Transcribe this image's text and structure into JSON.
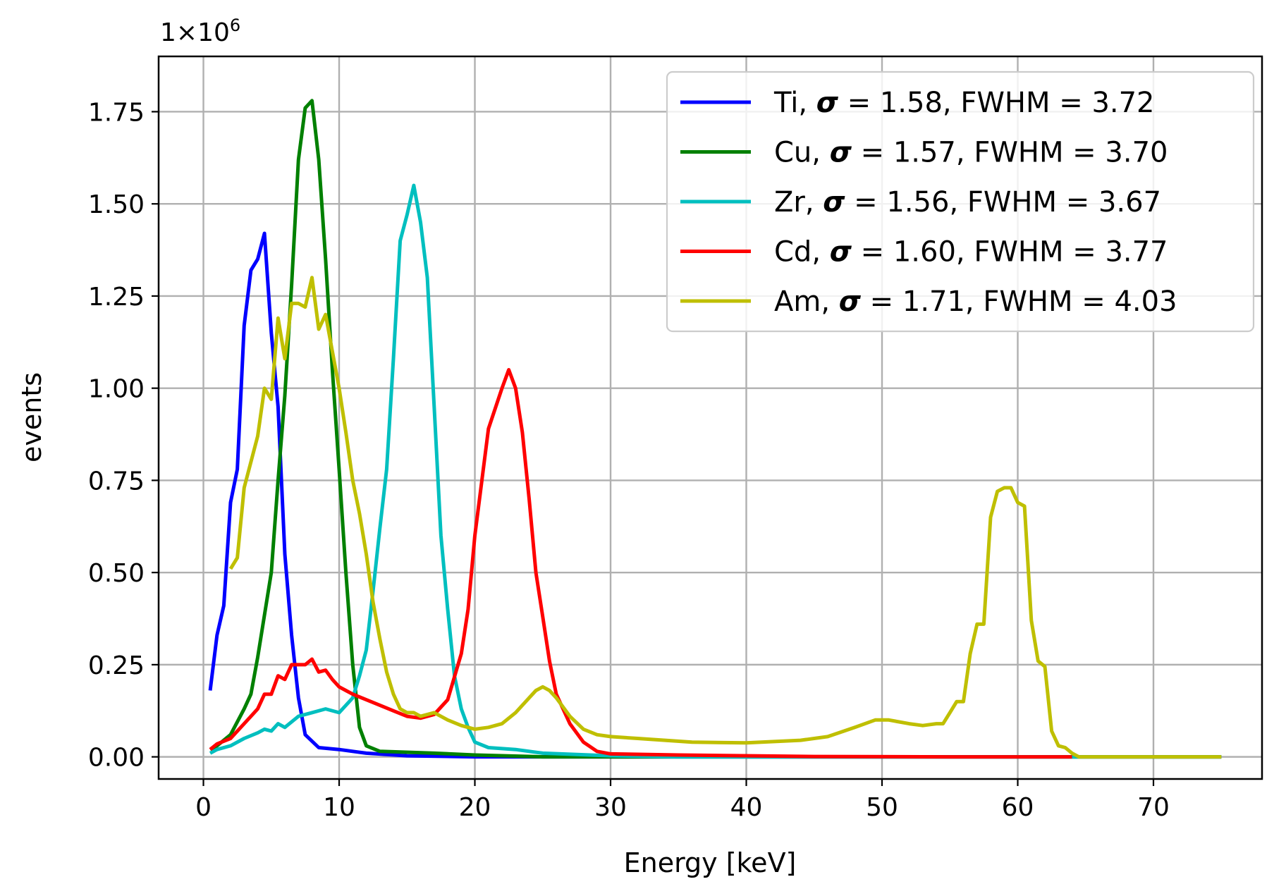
{
  "chart_data": {
    "type": "line",
    "title": "",
    "xlabel": "Energy [keV]",
    "ylabel": "events",
    "y_offset_text": "1×10",
    "y_offset_exponent": "6",
    "xlim": [
      -3.3,
      78
    ],
    "ylim": [
      -0.06,
      1.9
    ],
    "x_ticks": [
      0,
      10,
      20,
      30,
      40,
      50,
      60,
      70
    ],
    "x_tick_labels": [
      "0",
      "10",
      "20",
      "30",
      "40",
      "50",
      "60",
      "70"
    ],
    "y_ticks": [
      0,
      0.25,
      0.5,
      0.75,
      1.0,
      1.25,
      1.5,
      1.75
    ],
    "y_tick_labels": [
      "0.00",
      "0.25",
      "0.50",
      "0.75",
      "1.00",
      "1.25",
      "1.50",
      "1.75"
    ],
    "grid": true,
    "legend_position": "top-right",
    "series": [
      {
        "name": "Ti",
        "sigma": "1.58",
        "fwhm": "3.72",
        "color": "#0000ff",
        "points": [
          [
            0.5,
            0.18
          ],
          [
            1,
            0.33
          ],
          [
            1.5,
            0.41
          ],
          [
            2,
            0.69
          ],
          [
            2.5,
            0.78
          ],
          [
            3,
            1.17
          ],
          [
            3.5,
            1.32
          ],
          [
            4,
            1.35
          ],
          [
            4.5,
            1.42
          ],
          [
            5,
            1.15
          ],
          [
            5.5,
            0.95
          ],
          [
            6,
            0.55
          ],
          [
            6.5,
            0.33
          ],
          [
            7,
            0.16
          ],
          [
            7.5,
            0.06
          ],
          [
            8.5,
            0.025
          ],
          [
            10,
            0.02
          ],
          [
            12,
            0.01
          ],
          [
            15,
            0.003
          ],
          [
            20,
            0.0
          ],
          [
            75,
            0.0
          ]
        ]
      },
      {
        "name": "Cu",
        "sigma": "1.57",
        "fwhm": "3.70",
        "color": "#008000",
        "points": [
          [
            0.5,
            0.02
          ],
          [
            1,
            0.03
          ],
          [
            2,
            0.06
          ],
          [
            3,
            0.13
          ],
          [
            3.5,
            0.17
          ],
          [
            4,
            0.27
          ],
          [
            5,
            0.5
          ],
          [
            5.5,
            0.75
          ],
          [
            6,
            0.98
          ],
          [
            6.5,
            1.28
          ],
          [
            7,
            1.62
          ],
          [
            7.5,
            1.76
          ],
          [
            8,
            1.78
          ],
          [
            8.5,
            1.62
          ],
          [
            9,
            1.35
          ],
          [
            9.5,
            1.05
          ],
          [
            10,
            0.78
          ],
          [
            10.5,
            0.5
          ],
          [
            11,
            0.25
          ],
          [
            11.5,
            0.08
          ],
          [
            12,
            0.03
          ],
          [
            13,
            0.015
          ],
          [
            17,
            0.01
          ],
          [
            20,
            0.005
          ],
          [
            25,
            0.0
          ],
          [
            75,
            0.0
          ]
        ]
      },
      {
        "name": "Zr",
        "sigma": "1.56",
        "fwhm": "3.67",
        "color": "#00bfbf",
        "points": [
          [
            0.5,
            0.01
          ],
          [
            1,
            0.02
          ],
          [
            2,
            0.03
          ],
          [
            3,
            0.05
          ],
          [
            4,
            0.065
          ],
          [
            4.5,
            0.075
          ],
          [
            5,
            0.07
          ],
          [
            5.5,
            0.09
          ],
          [
            6,
            0.08
          ],
          [
            7,
            0.11
          ],
          [
            8,
            0.12
          ],
          [
            9,
            0.13
          ],
          [
            10,
            0.12
          ],
          [
            11,
            0.16
          ],
          [
            11.5,
            0.22
          ],
          [
            12,
            0.29
          ],
          [
            12.5,
            0.45
          ],
          [
            13,
            0.62
          ],
          [
            13.5,
            0.78
          ],
          [
            14,
            1.08
          ],
          [
            14.5,
            1.4
          ],
          [
            15,
            1.47
          ],
          [
            15.5,
            1.55
          ],
          [
            16,
            1.45
          ],
          [
            16.5,
            1.3
          ],
          [
            17,
            0.95
          ],
          [
            17.5,
            0.6
          ],
          [
            18,
            0.4
          ],
          [
            18.5,
            0.22
          ],
          [
            19,
            0.13
          ],
          [
            19.5,
            0.08
          ],
          [
            20,
            0.04
          ],
          [
            21,
            0.025
          ],
          [
            23,
            0.02
          ],
          [
            25,
            0.01
          ],
          [
            30,
            0.003
          ],
          [
            35,
            0.0
          ],
          [
            75,
            0.0
          ]
        ]
      },
      {
        "name": "Cd",
        "sigma": "1.60",
        "fwhm": "3.77",
        "color": "#ff0000",
        "points": [
          [
            0.5,
            0.02
          ],
          [
            1,
            0.035
          ],
          [
            2,
            0.05
          ],
          [
            3,
            0.09
          ],
          [
            4,
            0.13
          ],
          [
            4.5,
            0.17
          ],
          [
            5,
            0.17
          ],
          [
            5.5,
            0.22
          ],
          [
            6,
            0.21
          ],
          [
            6.5,
            0.25
          ],
          [
            7,
            0.25
          ],
          [
            7.5,
            0.25
          ],
          [
            8,
            0.265
          ],
          [
            8.5,
            0.23
          ],
          [
            9,
            0.235
          ],
          [
            9.5,
            0.21
          ],
          [
            10,
            0.19
          ],
          [
            10.5,
            0.18
          ],
          [
            11,
            0.17
          ],
          [
            12,
            0.155
          ],
          [
            13,
            0.14
          ],
          [
            14,
            0.125
          ],
          [
            15,
            0.11
          ],
          [
            16,
            0.105
          ],
          [
            17,
            0.115
          ],
          [
            18,
            0.155
          ],
          [
            19,
            0.28
          ],
          [
            19.5,
            0.4
          ],
          [
            20,
            0.6
          ],
          [
            21,
            0.89
          ],
          [
            22,
            1.0
          ],
          [
            22.5,
            1.05
          ],
          [
            23,
            1.0
          ],
          [
            23.5,
            0.88
          ],
          [
            24,
            0.7
          ],
          [
            24.5,
            0.5
          ],
          [
            25,
            0.38
          ],
          [
            25.5,
            0.26
          ],
          [
            26,
            0.17
          ],
          [
            27,
            0.09
          ],
          [
            28,
            0.04
          ],
          [
            29,
            0.015
          ],
          [
            30,
            0.008
          ],
          [
            35,
            0.005
          ],
          [
            45,
            0.001
          ],
          [
            55,
            0.0
          ],
          [
            64,
            0.0
          ]
        ]
      },
      {
        "name": "Am",
        "sigma": "1.71",
        "fwhm": "4.03",
        "color": "#bfbf00",
        "points": [
          [
            2,
            0.51
          ],
          [
            2.5,
            0.54
          ],
          [
            3,
            0.73
          ],
          [
            3.5,
            0.8
          ],
          [
            4,
            0.87
          ],
          [
            4.5,
            1.0
          ],
          [
            5,
            0.97
          ],
          [
            5.5,
            1.19
          ],
          [
            6,
            1.08
          ],
          [
            6.5,
            1.23
          ],
          [
            7,
            1.23
          ],
          [
            7.5,
            1.22
          ],
          [
            8,
            1.3
          ],
          [
            8.5,
            1.16
          ],
          [
            9,
            1.2
          ],
          [
            9.5,
            1.1
          ],
          [
            10,
            1.0
          ],
          [
            10.5,
            0.88
          ],
          [
            11,
            0.75
          ],
          [
            11.5,
            0.66
          ],
          [
            12,
            0.55
          ],
          [
            12.5,
            0.42
          ],
          [
            13,
            0.32
          ],
          [
            13.5,
            0.23
          ],
          [
            14,
            0.17
          ],
          [
            14.5,
            0.13
          ],
          [
            15,
            0.12
          ],
          [
            15.5,
            0.12
          ],
          [
            16,
            0.11
          ],
          [
            17,
            0.12
          ],
          [
            18,
            0.1
          ],
          [
            19,
            0.085
          ],
          [
            20,
            0.075
          ],
          [
            21,
            0.08
          ],
          [
            22,
            0.09
          ],
          [
            23,
            0.12
          ],
          [
            24,
            0.16
          ],
          [
            24.5,
            0.18
          ],
          [
            25,
            0.19
          ],
          [
            25.5,
            0.18
          ],
          [
            26,
            0.16
          ],
          [
            27,
            0.11
          ],
          [
            28,
            0.075
          ],
          [
            29,
            0.06
          ],
          [
            30,
            0.055
          ],
          [
            32,
            0.05
          ],
          [
            34,
            0.045
          ],
          [
            36,
            0.04
          ],
          [
            40,
            0.038
          ],
          [
            44,
            0.045
          ],
          [
            46,
            0.055
          ],
          [
            48,
            0.08
          ],
          [
            49.5,
            0.1
          ],
          [
            50.5,
            0.1
          ],
          [
            52,
            0.09
          ],
          [
            53,
            0.085
          ],
          [
            54,
            0.09
          ],
          [
            54.5,
            0.09
          ],
          [
            55,
            0.12
          ],
          [
            55.5,
            0.15
          ],
          [
            56,
            0.15
          ],
          [
            56.5,
            0.28
          ],
          [
            57,
            0.36
          ],
          [
            57.5,
            0.36
          ],
          [
            58,
            0.65
          ],
          [
            58.5,
            0.72
          ],
          [
            59,
            0.73
          ],
          [
            59.5,
            0.73
          ],
          [
            60,
            0.69
          ],
          [
            60.5,
            0.68
          ],
          [
            61,
            0.37
          ],
          [
            61.5,
            0.26
          ],
          [
            62,
            0.245
          ],
          [
            62.5,
            0.07
          ],
          [
            63,
            0.03
          ],
          [
            63.5,
            0.025
          ],
          [
            64,
            0.01
          ],
          [
            64.5,
            0.0
          ],
          [
            75,
            0.0
          ]
        ]
      }
    ]
  }
}
